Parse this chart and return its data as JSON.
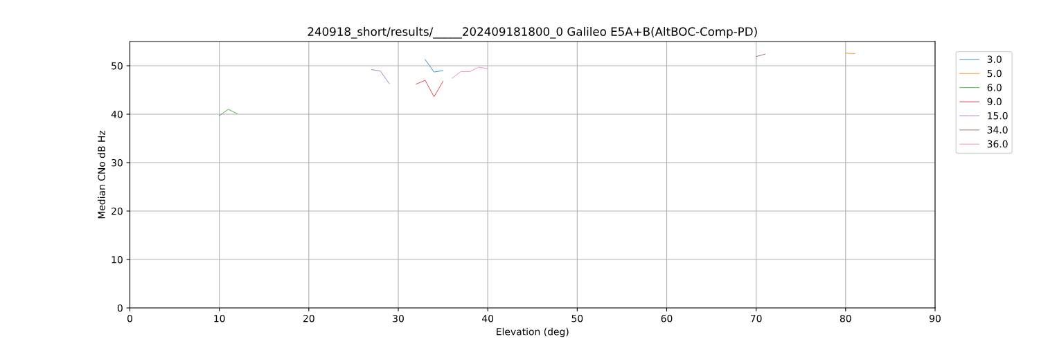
{
  "chart_data": {
    "type": "line",
    "title": "240918_short/results/_____202409181800_0 Galileo E5A+B(AltBOC-Comp-PD)",
    "xlabel": "Elevation (deg)",
    "ylabel": "Median CNo dB Hz",
    "xlim": [
      0,
      90
    ],
    "xticks": [
      0,
      10,
      20,
      30,
      40,
      50,
      60,
      70,
      80,
      90
    ],
    "ylim": [
      0,
      55
    ],
    "yticks": [
      0,
      10,
      20,
      30,
      40,
      50
    ],
    "grid": true,
    "legend": "top right",
    "marker": "none",
    "line_style": "solid",
    "series": [
      {
        "name": "3.0",
        "color": "#1f77b4",
        "x": [
          33,
          34,
          35
        ],
        "values": [
          51.3,
          48.7,
          49.0
        ]
      },
      {
        "name": "5.0",
        "color": "#ff7f0e",
        "x": [
          80,
          81
        ],
        "values": [
          52.6,
          52.5
        ]
      },
      {
        "name": "6.0",
        "color": "#2ca02c",
        "x": [
          10,
          11,
          12
        ],
        "values": [
          39.7,
          41.0,
          40.1
        ]
      },
      {
        "name": "9.0",
        "color": "#d62728",
        "x": [
          32,
          33,
          34,
          35
        ],
        "values": [
          46.2,
          47.0,
          43.6,
          46.8
        ]
      },
      {
        "name": "15.0",
        "color": "#9467bd",
        "x": [
          27,
          28,
          29
        ],
        "values": [
          49.2,
          48.9,
          46.3
        ]
      },
      {
        "name": "34.0",
        "color": "#8c564b",
        "x": [
          70,
          71
        ],
        "values": [
          51.9,
          52.4
        ]
      },
      {
        "name": "36.0",
        "color": "#e377c2",
        "x": [
          36,
          37,
          38,
          39,
          40
        ],
        "values": [
          47.4,
          48.8,
          48.8,
          49.7,
          49.4
        ]
      }
    ]
  }
}
